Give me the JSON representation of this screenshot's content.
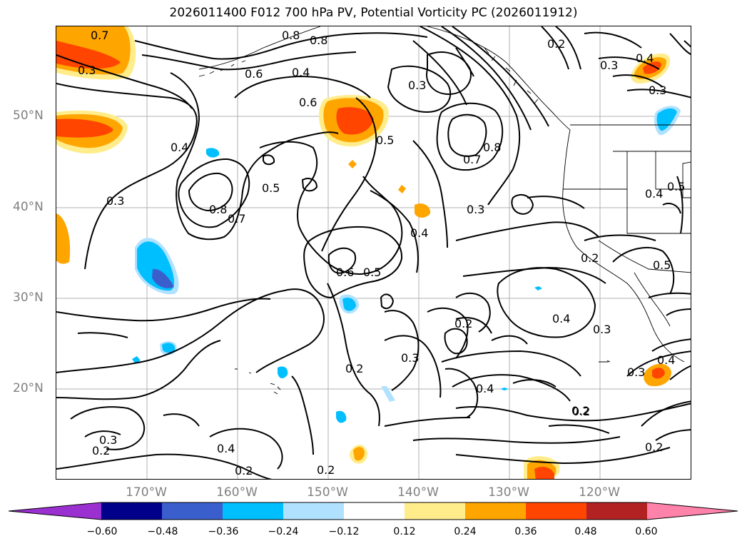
{
  "title": "2026011400 F012 700 hPa PV, Potential Vorticity PC (2026011912)",
  "lat_labels": [
    "50°N",
    "40°N",
    "30°N",
    "20°N"
  ],
  "lon_labels": [
    "170°W",
    "160°W",
    "150°W",
    "140°W",
    "130°W",
    "120°W"
  ],
  "colorbar": {
    "ticks": [
      "−0.60",
      "−0.48",
      "−0.36",
      "−0.24",
      "−0.12",
      "0.12",
      "0.24",
      "0.36",
      "0.48",
      "0.60"
    ],
    "colors": [
      "#9b30d0",
      "#00008b",
      "#3a5fcd",
      "#00bfff",
      "#b0e2ff",
      "#ffffff",
      "#ffec8b",
      "#ffa500",
      "#ff4500",
      "#b22222",
      "#ff82ab"
    ]
  },
  "contour_labels": [
    "0.7",
    "0.3",
    "0.8",
    "0.8",
    "0.6",
    "0.4",
    "0.6",
    "0.3",
    "0.4",
    "0.2",
    "0.3",
    "0.4",
    "0.3",
    "0.5",
    "0.8",
    "0.7",
    "0.5",
    "0.6",
    "0.5",
    "0.8",
    "0.7",
    "0.4",
    "0.3",
    "0.4",
    "0.5",
    "0.2",
    "0.5",
    "0.4",
    "0.3",
    "0.2",
    "0.2",
    "0.3",
    "0.4",
    "0.3",
    "0.2",
    "0.4",
    "0.2",
    "0.3",
    "0.4",
    "0.2",
    "0.3",
    "0.2",
    "0.2",
    "0.2"
  ]
}
